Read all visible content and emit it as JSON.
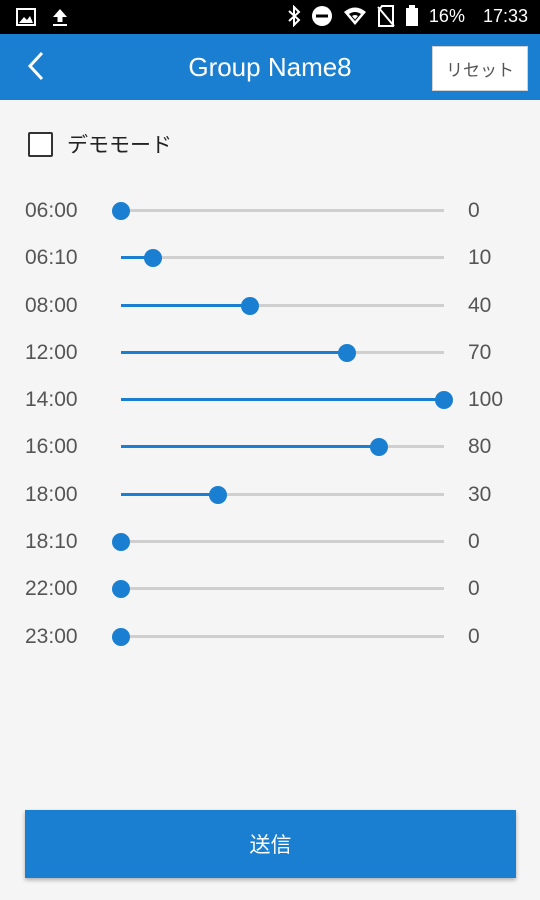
{
  "status_bar": {
    "left_icons": [
      "image-icon",
      "upload-icon"
    ],
    "right_icons": [
      "bluetooth-icon",
      "do-not-disturb-icon",
      "wifi-icon",
      "no-sim-icon",
      "battery-icon"
    ],
    "battery": "16%",
    "time": "17:33"
  },
  "app_bar": {
    "back_icon": "chevron-left-icon",
    "title": "Group Name8",
    "reset_label": "リセット"
  },
  "demo_mode": {
    "label": "デモモード",
    "checked": false
  },
  "schedule": [
    {
      "time": "06:00",
      "value": 0
    },
    {
      "time": "06:10",
      "value": 10
    },
    {
      "time": "08:00",
      "value": 40
    },
    {
      "time": "12:00",
      "value": 70
    },
    {
      "time": "14:00",
      "value": 100
    },
    {
      "time": "16:00",
      "value": 80
    },
    {
      "time": "18:00",
      "value": 30
    },
    {
      "time": "18:10",
      "value": 0
    },
    {
      "time": "22:00",
      "value": 0
    },
    {
      "time": "23:00",
      "value": 0
    }
  ],
  "send_label": "送信",
  "colors": {
    "accent": "#1a7fd0",
    "track": "#cfcfcf",
    "background": "#f5f5f5"
  }
}
